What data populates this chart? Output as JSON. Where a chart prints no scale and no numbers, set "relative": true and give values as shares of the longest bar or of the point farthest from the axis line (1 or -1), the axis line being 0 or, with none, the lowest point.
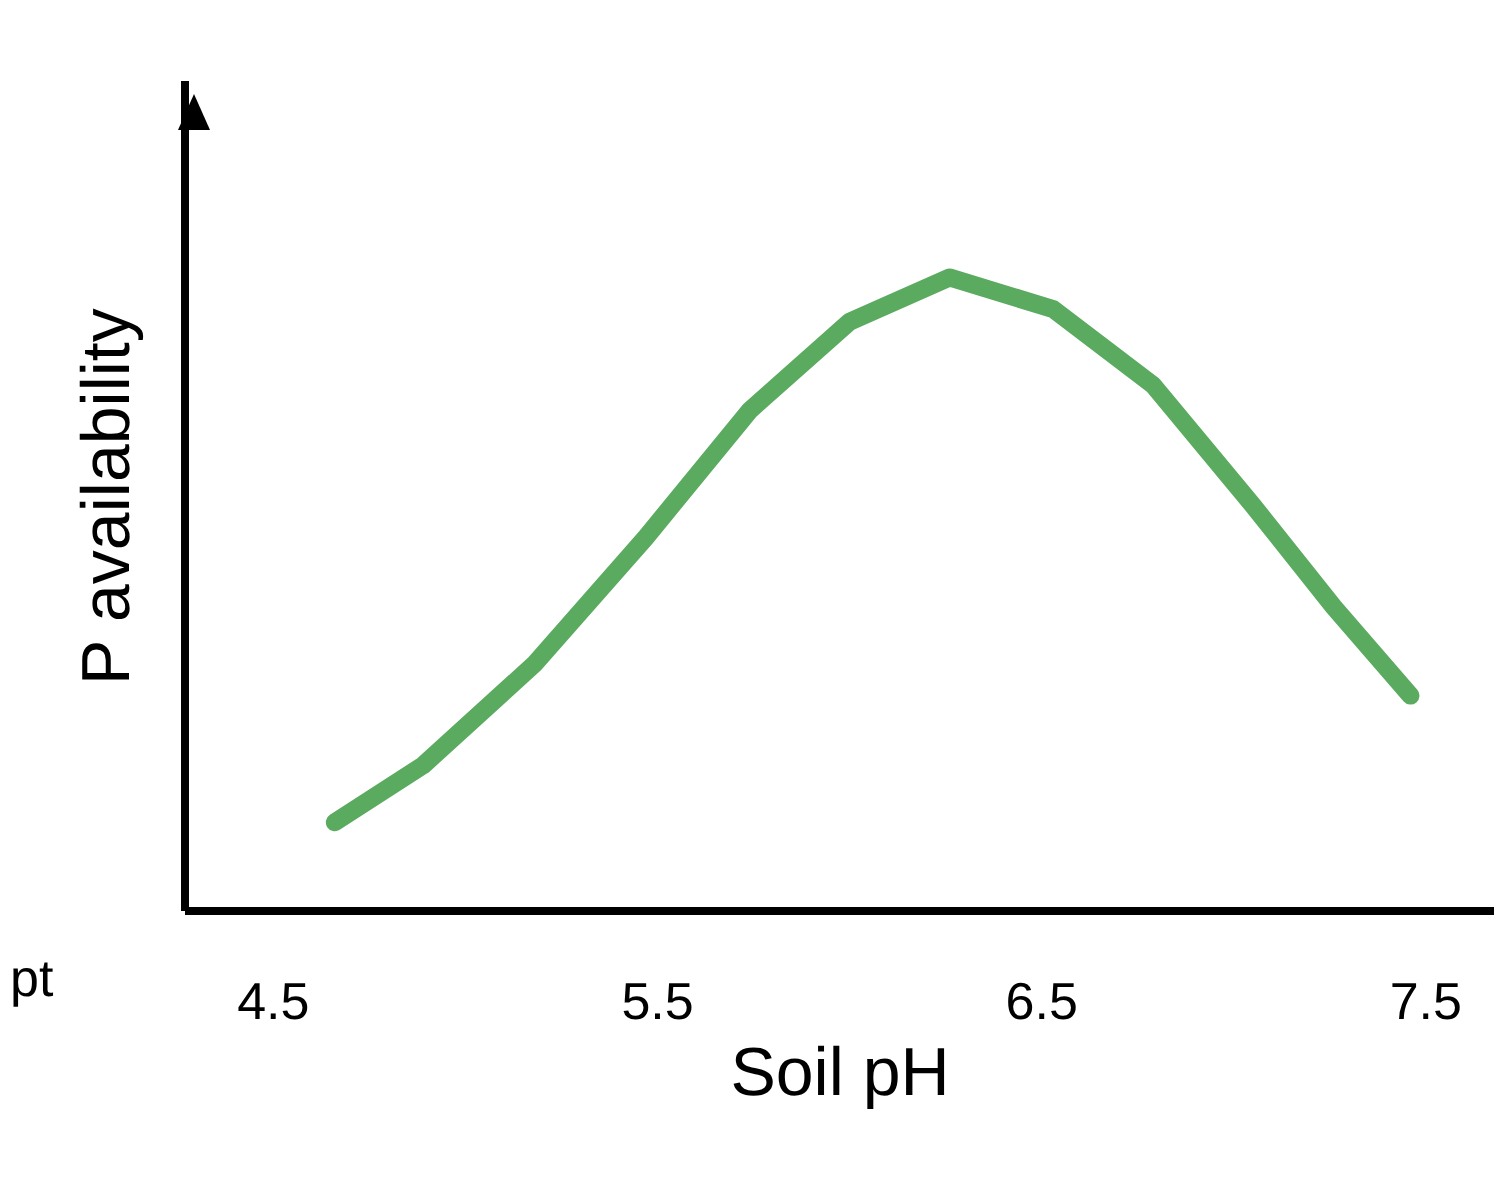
{
  "chart_data": {
    "type": "line",
    "xlabel": "Soil pH",
    "ylabel": "P availability",
    "relative": true,
    "xlim": [
      4.27,
      7.68
    ],
    "xticks": [
      4.5,
      5.5,
      6.5,
      7.5
    ],
    "grid": false,
    "marker": "none",
    "line_style": "solid",
    "annotations": [
      "pt"
    ],
    "series": [
      {
        "color": "#5aaa5f",
        "x": [
          4.66,
          4.89,
          5.18,
          5.47,
          5.74,
          6.0,
          6.26,
          6.53,
          6.79,
          7.05,
          7.26,
          7.46
        ],
        "values": [
          0.14,
          0.23,
          0.39,
          0.59,
          0.79,
          0.93,
          1.0,
          0.95,
          0.83,
          0.64,
          0.48,
          0.34
        ]
      }
    ]
  }
}
